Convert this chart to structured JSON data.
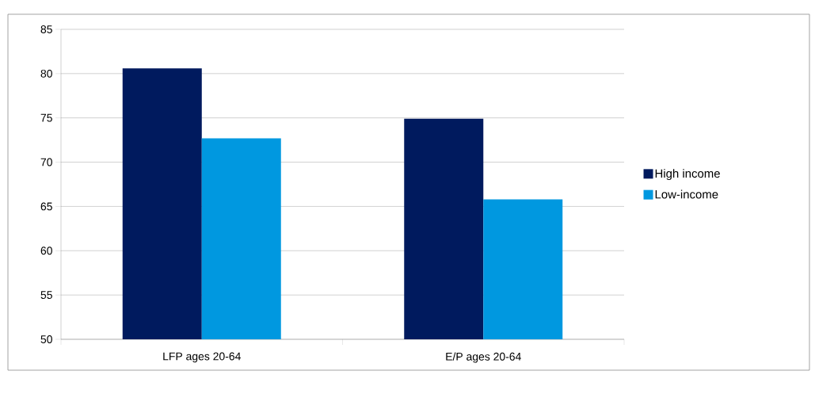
{
  "chart_data": {
    "type": "bar",
    "categories": [
      "LFP ages 20-64",
      "E/P ages 20-64"
    ],
    "series": [
      {
        "name": "High income",
        "color": "#001a5e",
        "values": [
          80.6,
          74.9
        ]
      },
      {
        "name": "Low-income",
        "color": "#0098e0",
        "values": [
          72.7,
          65.8
        ]
      }
    ],
    "ylim": [
      50,
      85
    ],
    "yticks": [
      50,
      55,
      60,
      65,
      70,
      75,
      80,
      85
    ],
    "grid": "y",
    "legend": "right"
  }
}
